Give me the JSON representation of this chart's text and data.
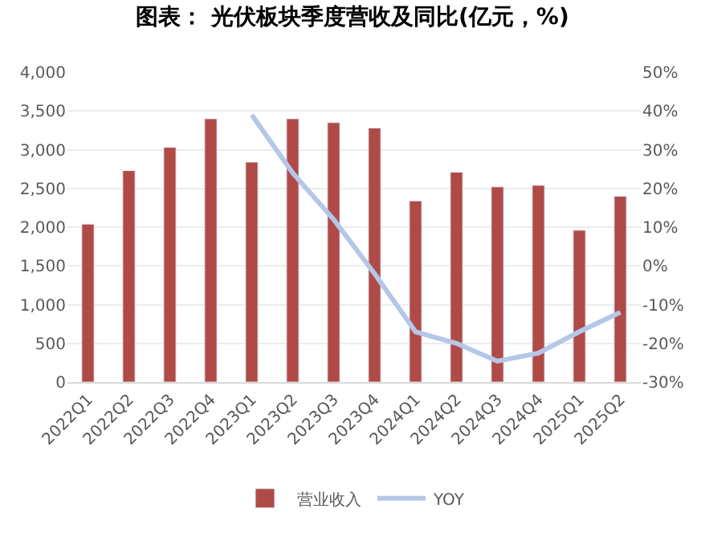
{
  "chart_data": {
    "type": "bar",
    "title": "图表： 光伏板块季度营收及同比(亿元，%)",
    "categories": [
      "2022Q1",
      "2022Q2",
      "2022Q3",
      "2022Q4",
      "2023Q1",
      "2023Q2",
      "2023Q3",
      "2023Q4",
      "2024Q1",
      "2024Q2",
      "2024Q3",
      "2024Q4",
      "2025Q1",
      "2025Q2"
    ],
    "series": [
      {
        "name": "营业收入",
        "color": "#b04a47",
        "values": [
          2040,
          2730,
          3030,
          3400,
          2840,
          3400,
          3350,
          3280,
          2340,
          2710,
          2520,
          2540,
          1960,
          2400
        ]
      },
      {
        "name": "YOY",
        "type": "line",
        "axis": "y2",
        "color": "#b4c7e7",
        "values": [
          null,
          null,
          null,
          null,
          39,
          24,
          12,
          -2,
          -17,
          -20,
          -24.6,
          -22.5,
          -17,
          -12
        ]
      }
    ],
    "ylim": [
      0,
      4000
    ],
    "yticks": [
      {
        "value": 0,
        "label": "0"
      },
      {
        "value": 500,
        "label": "500"
      },
      {
        "value": 1000,
        "label": "1,000"
      },
      {
        "value": 1500,
        "label": "1,500"
      },
      {
        "value": 2000,
        "label": "2,000"
      },
      {
        "value": 2500,
        "label": "2,500"
      },
      {
        "value": 3000,
        "label": "3,000"
      },
      {
        "value": 3500,
        "label": "3,500"
      },
      {
        "value": 4000,
        "label": "4,000"
      }
    ],
    "y2lim": [
      -30,
      50
    ],
    "y2ticks": [
      {
        "value": -30,
        "label": "-30%"
      },
      {
        "value": -20,
        "label": "-20%"
      },
      {
        "value": -10,
        "label": "-10%"
      },
      {
        "value": 0,
        "label": "0%"
      },
      {
        "value": 10,
        "label": "10%"
      },
      {
        "value": 20,
        "label": "20%"
      },
      {
        "value": 30,
        "label": "30%"
      },
      {
        "value": 40,
        "label": "40%"
      },
      {
        "value": 50,
        "label": "50%"
      }
    ],
    "grid": "y",
    "legend": "bottom",
    "marker": "none",
    "line_style": "solid"
  }
}
